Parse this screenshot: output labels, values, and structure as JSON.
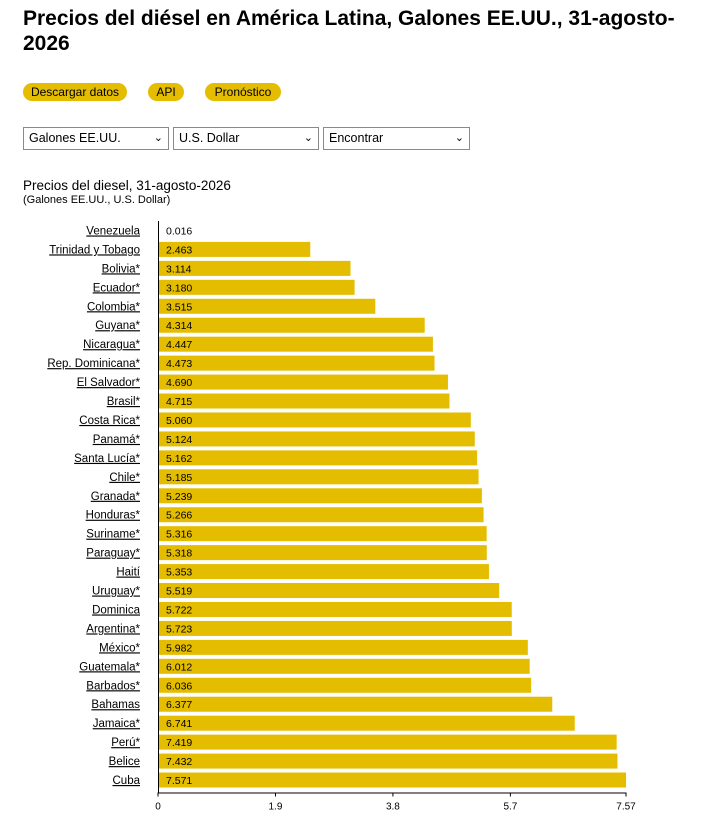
{
  "header": {
    "title": "Precios del diésel en América Latina, Galones EE.UU., 31-agosto-2026"
  },
  "actions": {
    "download": "Descargar datos",
    "api": "API",
    "forecast": "Pronóstico"
  },
  "filters": {
    "unit": "Galones EE.UU.",
    "currency": "U.S. Dollar",
    "find": "Encontrar"
  },
  "chart_data": {
    "type": "bar",
    "orientation": "horizontal",
    "title": "Precios del diesel, 31-agosto-2026",
    "subtitle": "(Galones EE.UU., U.S. Dollar)",
    "categories": [
      "Venezuela",
      "Trinidad y Tobago",
      "Bolivia*",
      "Ecuador*",
      "Colombia*",
      "Guyana*",
      "Nicaragua*",
      "Rep. Dominicana*",
      "El Salvador*",
      "Brasil*",
      "Costa Rica*",
      "Panamá*",
      "Santa Lucía*",
      "Chile*",
      "Granada*",
      "Honduras*",
      "Suriname*",
      "Paraguay*",
      "Haití",
      "Uruguay*",
      "Dominica",
      "Argentina*",
      "México*",
      "Guatemala*",
      "Barbados*",
      "Bahamas",
      "Jamaica*",
      "Perú*",
      "Belice",
      "Cuba"
    ],
    "values": [
      0.016,
      2.463,
      3.114,
      3.18,
      3.515,
      4.314,
      4.447,
      4.473,
      4.69,
      4.715,
      5.06,
      5.124,
      5.162,
      5.185,
      5.239,
      5.266,
      5.316,
      5.318,
      5.353,
      5.519,
      5.722,
      5.723,
      5.982,
      6.012,
      6.036,
      6.377,
      6.741,
      7.419,
      7.432,
      7.571
    ],
    "labels": [
      "0.016",
      "2.463",
      "3.114",
      "3.180",
      "3.515",
      "4.314",
      "4.447",
      "4.473",
      "4.690",
      "4.715",
      "5.060",
      "5.124",
      "5.162",
      "5.185",
      "5.239",
      "5.266",
      "5.316",
      "5.318",
      "5.353",
      "5.519",
      "5.722",
      "5.723",
      "5.982",
      "6.012",
      "6.036",
      "6.377",
      "6.741",
      "7.419",
      "7.432",
      "7.571"
    ],
    "xticks": [
      0,
      1.9,
      3.8,
      5.7,
      7.57
    ],
    "xtick_labels": [
      "0",
      "1.9",
      "3.8",
      "5.7",
      "7.57"
    ],
    "xlim": [
      0,
      7.57
    ],
    "bar_color": "#e4bd00"
  }
}
